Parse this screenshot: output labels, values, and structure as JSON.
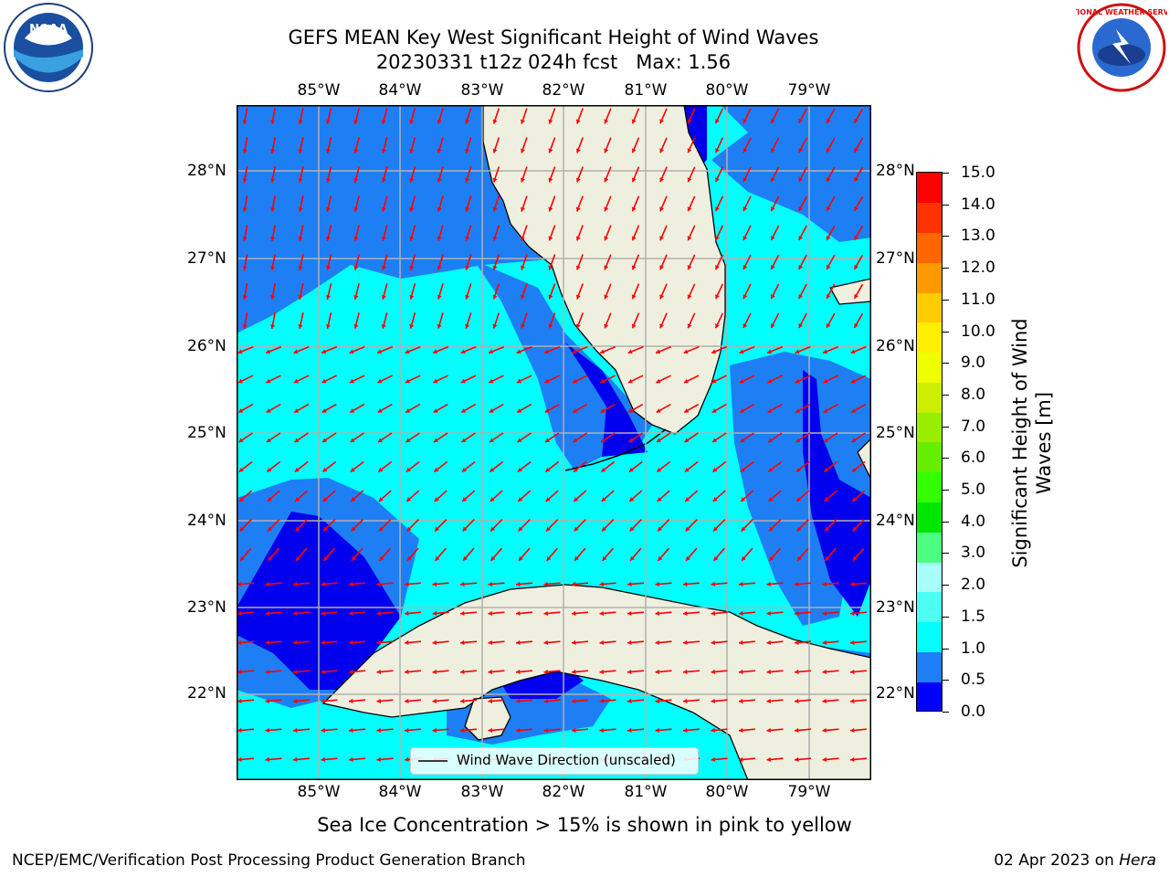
{
  "header": {
    "title_line1": "GEFS MEAN Key West Significant Height of Wind Waves",
    "title_line2": "20230331 t12z 024h fcst   Max: 1.56"
  },
  "logos": {
    "left_icon": "noaa-logo",
    "left_text": "NOAA",
    "right_icon": "nws-logo",
    "right_text": "NATIONAL WEATHER SERVICE"
  },
  "map": {
    "lon_labels": [
      "85°W",
      "84°W",
      "83°W",
      "82°W",
      "81°W",
      "80°W",
      "79°W"
    ],
    "lat_labels": [
      "28°N",
      "27°N",
      "26°N",
      "25°N",
      "24°N",
      "23°N",
      "22°N"
    ],
    "legend_label": "Wind Wave Direction (unscaled)",
    "ocean_colors": {
      "low": "#0000ee",
      "mid": "#1e7ff5",
      "high": "#00ffff",
      "land": "#efefdf",
      "arrow": "#ff0000"
    }
  },
  "colorbar": {
    "label": "Significant Height of Wind Waves [m]",
    "ticks": [
      "0.0",
      "0.5",
      "1.0",
      "1.5",
      "2.0",
      "3.0",
      "4.0",
      "5.0",
      "6.0",
      "7.0",
      "8.0",
      "9.0",
      "10.0",
      "11.0",
      "12.0",
      "13.0",
      "14.0",
      "15.0"
    ],
    "colors": [
      "#0000ff",
      "#1e7ff5",
      "#00ffff",
      "#4dfff0",
      "#a6fff8",
      "#4dff80",
      "#00e600",
      "#33ff00",
      "#66ee00",
      "#99ee00",
      "#ccee00",
      "#eeff00",
      "#ffee00",
      "#ffcc00",
      "#ff9900",
      "#ff6600",
      "#ff3300",
      "#ff0000"
    ]
  },
  "notes": {
    "sea_ice": "Sea Ice Concentration > 15% is shown in pink to yellow"
  },
  "footer": {
    "left": "NCEP/EMC/Verification Post Processing Product Generation Branch",
    "date": "02 Apr 2023 on ",
    "host": "Hera"
  }
}
